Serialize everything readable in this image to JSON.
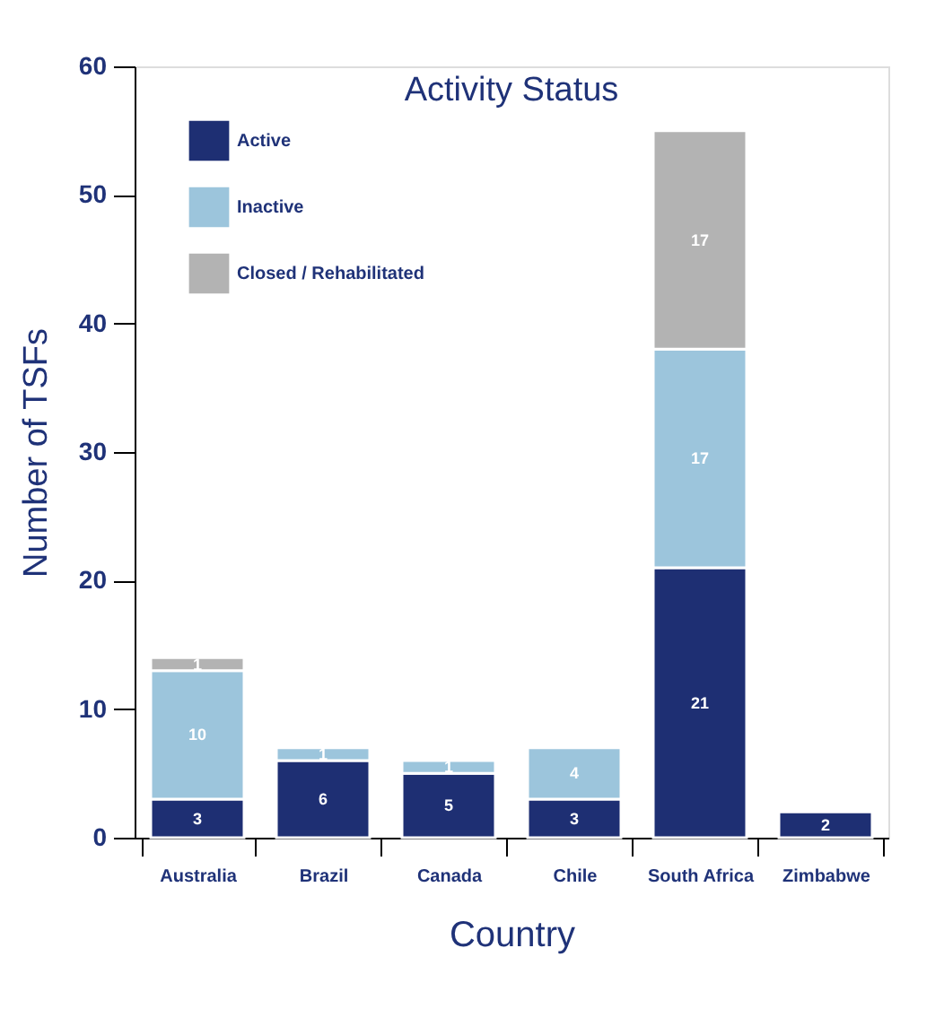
{
  "chart_data": {
    "type": "bar",
    "title": "Activity Status",
    "xlabel": "Country",
    "ylabel": "Number of TSFs",
    "categories": [
      "Australia",
      "Brazil",
      "Canada",
      "Chile",
      "South Africa",
      "Zimbabwe"
    ],
    "stacked": true,
    "series": [
      {
        "name": "Active",
        "color": "#1e2f73",
        "values": [
          3,
          6,
          5,
          3,
          21,
          2
        ]
      },
      {
        "name": "Inactive",
        "color": "#9cc5dc",
        "values": [
          10,
          1,
          1,
          4,
          17,
          null
        ]
      },
      {
        "name": "Closed / Rehabilitated",
        "color": "#b3b3b3",
        "values": [
          1,
          null,
          null,
          null,
          17,
          null
        ]
      }
    ],
    "ylim": [
      0,
      60
    ],
    "yticks": [
      0,
      10,
      20,
      30,
      40,
      50,
      60
    ],
    "grid": false,
    "legend": "top left",
    "data_labels": true
  }
}
